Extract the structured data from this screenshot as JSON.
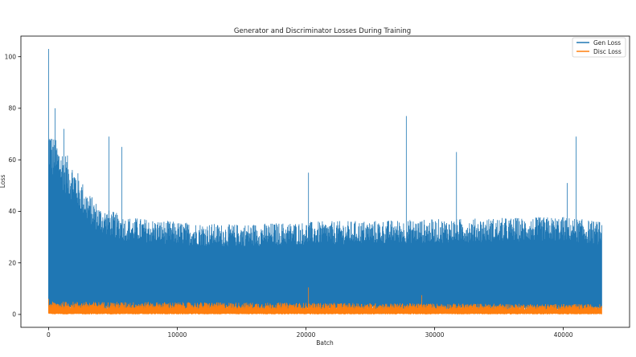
{
  "chart_data": {
    "type": "line",
    "title": "Generator and Discriminator Losses During Training",
    "xlabel": "Batch",
    "ylabel": "Loss",
    "xlim": [
      -2150,
      45150
    ],
    "ylim": [
      -5,
      108
    ],
    "xticks": [
      0,
      10000,
      20000,
      30000,
      40000
    ],
    "yticks": [
      0,
      20,
      40,
      60,
      80,
      100
    ],
    "legend_position": "top-right",
    "series": [
      {
        "name": "Gen Loss",
        "color": "#1f77b4",
        "description": "Dense noisy band; floor near 0-5, upper envelope as below",
        "envelope_x": [
          0,
          300,
          1000,
          2000,
          3000,
          4000,
          6000,
          10000,
          14000,
          20000,
          30000,
          40000,
          43000
        ],
        "envelope_upper": [
          75,
          70,
          65,
          58,
          48,
          42,
          38,
          36,
          35,
          36,
          37,
          38,
          36
        ],
        "spikes": [
          {
            "x": 0,
            "y": 103
          },
          {
            "x": 500,
            "y": 80
          },
          {
            "x": 1200,
            "y": 72
          },
          {
            "x": 4700,
            "y": 69
          },
          {
            "x": 5700,
            "y": 65
          },
          {
            "x": 20200,
            "y": 55
          },
          {
            "x": 27800,
            "y": 77
          },
          {
            "x": 31700,
            "y": 63
          },
          {
            "x": 41000,
            "y": 69
          },
          {
            "x": 40300,
            "y": 51
          }
        ]
      },
      {
        "name": "Disc Loss",
        "color": "#ff7f0e",
        "description": "Low band near 0-3 with small spikes",
        "envelope_x": [
          0,
          43000
        ],
        "envelope_upper": [
          5,
          4
        ],
        "spikes": [
          {
            "x": 20200,
            "y": 10.5
          },
          {
            "x": 29000,
            "y": 7.5
          },
          {
            "x": 0,
            "y": 6
          }
        ]
      }
    ]
  }
}
